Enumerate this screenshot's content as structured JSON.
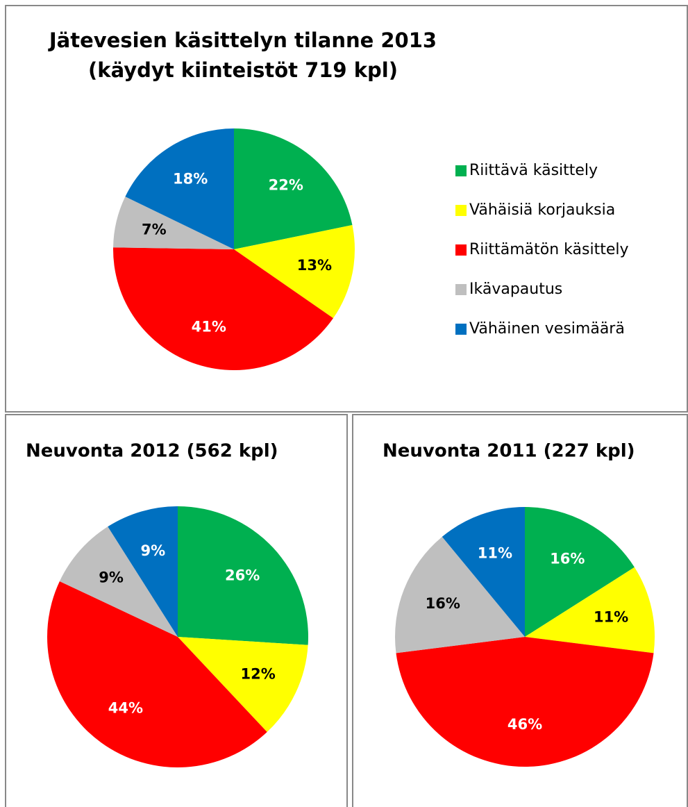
{
  "chart_data": [
    {
      "type": "pie",
      "title": [
        "Jätevesien käsittelyn tilanne  2013",
        "(käydyt kiinteistöt 719 kpl)"
      ],
      "categories": [
        "Riittävä käsittely",
        "Vähäisiä korjauksia",
        "Riittämätön käsittely",
        "Ikävapautus",
        "Vähäinen vesimäärä"
      ],
      "values": [
        22,
        13,
        41,
        7,
        18
      ],
      "value_labels": [
        "22%",
        "13%",
        "41%",
        "7%",
        "18%"
      ],
      "colors": [
        "#00b050",
        "#ffff00",
        "#ff0000",
        "#bfbfbf",
        "#0070c0"
      ],
      "legend": "right"
    },
    {
      "type": "pie",
      "title": [
        "Neuvonta 2012 (562 kpl)"
      ],
      "values": [
        26,
        12,
        44,
        9,
        9
      ],
      "value_labels": [
        "26%",
        "12%",
        "44%",
        "9%",
        "9%"
      ],
      "colors": [
        "#00b050",
        "#ffff00",
        "#ff0000",
        "#bfbfbf",
        "#0070c0"
      ]
    },
    {
      "type": "pie",
      "title": [
        "Neuvonta 2011 (227 kpl)"
      ],
      "values": [
        16,
        11,
        46,
        16,
        11
      ],
      "value_labels": [
        "16%",
        "11%",
        "46%",
        "16%",
        "11%"
      ],
      "colors": [
        "#00b050",
        "#ffff00",
        "#ff0000",
        "#bfbfbf",
        "#0070c0"
      ]
    }
  ]
}
